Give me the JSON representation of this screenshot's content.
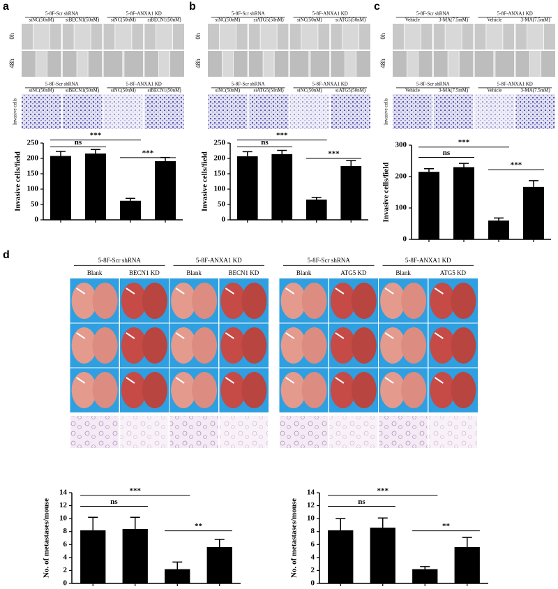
{
  "panels": [
    {
      "label": "a",
      "groups": [
        "5-8F-Scr shRNA",
        "5-8F-ANXA1 KD"
      ],
      "conditions": [
        "siNC(50nM)",
        "siBECN1(50nM)",
        "siNC(50nM)",
        "siBECN1(50nM)"
      ],
      "rows": [
        "0h",
        "48h"
      ],
      "invasion_label": "Invasive cells"
    },
    {
      "label": "b",
      "groups": [
        "5-8F-Scr shRNA",
        "5-8F-ANXA1 KD"
      ],
      "conditions": [
        "siNC(50nM)",
        "siATG5(50nM)",
        "siNC(50nM)",
        "siATG5(50nM)"
      ],
      "rows": [
        "0h",
        "48h"
      ]
    },
    {
      "label": "c",
      "groups": [
        "5-8F-Scr shRNA",
        "5-8F-ANXA1 KD"
      ],
      "conditions": [
        "Vehicle",
        "3-MA(7.5mM)",
        "Vehicle",
        "3-MA(7.5mM)"
      ],
      "rows": [
        "0h",
        "48h"
      ],
      "invasion_label": "Invasive cells"
    }
  ],
  "panel_d": {
    "label": "d",
    "left": {
      "groups": [
        "5-8F-Scr shRNA",
        "5-8F-ANXA1 KD"
      ],
      "conditions": [
        "Blank",
        "BECN1 KD",
        "Blank",
        "BECN1 KD"
      ]
    },
    "right": {
      "groups": [
        "5-8F-Scr shRNA",
        "5-8F-ANXA1 KD"
      ],
      "conditions": [
        "Blank",
        "ATG5 KD",
        "Blank",
        "ATG5 KD"
      ]
    }
  },
  "chart_data": [
    {
      "type": "bar",
      "ylabel": "Invasive cells/field",
      "categories": [
        null,
        null,
        null,
        null
      ],
      "values": [
        208,
        216,
        62,
        191
      ],
      "errors": [
        15,
        13,
        8,
        12
      ],
      "color": "#000000",
      "ylim": [
        0,
        250
      ],
      "yticks": [
        0,
        50,
        100,
        150,
        200,
        250
      ],
      "annotations": [
        "***",
        "ns",
        "***"
      ]
    },
    {
      "type": "bar",
      "ylabel": "Invasive cells/field",
      "categories": [
        null,
        null,
        null,
        null
      ],
      "values": [
        207,
        214,
        66,
        175
      ],
      "errors": [
        15,
        12,
        7,
        18
      ],
      "color": "#000000",
      "ylim": [
        0,
        250
      ],
      "yticks": [
        0,
        50,
        100,
        150,
        200,
        250
      ],
      "annotations": [
        "***",
        "ns",
        "***"
      ]
    },
    {
      "type": "bar",
      "ylabel": "Invasive cells/field",
      "categories": [
        null,
        null,
        null,
        null
      ],
      "values": [
        215,
        230,
        60,
        167
      ],
      "errors": [
        10,
        12,
        8,
        20
      ],
      "color": "#000000",
      "ylim": [
        0,
        300
      ],
      "yticks": [
        0,
        100,
        200,
        300
      ],
      "annotations": [
        "***",
        "ns",
        "***"
      ]
    },
    {
      "type": "bar",
      "ylabel": "No. of metastases/mouse",
      "categories": [
        null,
        null,
        null,
        null
      ],
      "values": [
        8.2,
        8.4,
        2.2,
        5.6
      ],
      "errors": [
        2.0,
        1.8,
        1.1,
        1.2
      ],
      "color": "#000000",
      "ylim": [
        0,
        14
      ],
      "yticks": [
        0,
        2,
        4,
        6,
        8,
        10,
        12,
        14
      ],
      "annotations": [
        "***",
        "ns",
        "**"
      ]
    },
    {
      "type": "bar",
      "ylabel": "No. of metastases/mouse",
      "categories": [
        null,
        null,
        null,
        null
      ],
      "values": [
        8.2,
        8.6,
        2.2,
        5.6
      ],
      "errors": [
        1.8,
        1.5,
        0.4,
        1.5
      ],
      "color": "#000000",
      "ylim": [
        0,
        14
      ],
      "yticks": [
        0,
        2,
        4,
        6,
        8,
        10,
        12,
        14
      ],
      "annotations": [
        "***",
        "ns",
        "**"
      ]
    }
  ]
}
